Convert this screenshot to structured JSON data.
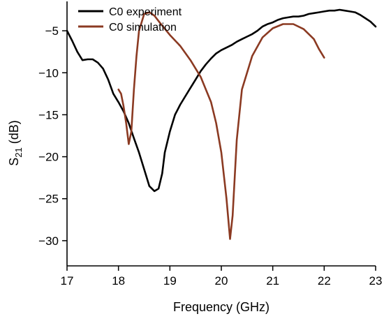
{
  "chart_data": {
    "type": "line",
    "xlabel": "Frequency (GHz)",
    "ylabel_main": "S",
    "ylabel_sub": "21",
    "ylabel_unit": " (dB)",
    "xlim": [
      17,
      23
    ],
    "ylim": [
      -33,
      -1.5
    ],
    "xticks": [
      17,
      18,
      19,
      20,
      21,
      22,
      23
    ],
    "yticks": [
      -5,
      -10,
      -15,
      -20,
      -25,
      -30
    ],
    "grid": false,
    "legend_position": "top-left",
    "series": [
      {
        "name": "C0 experiment",
        "color": "#000000",
        "points": [
          [
            17.0,
            -5.0
          ],
          [
            17.1,
            -6.2
          ],
          [
            17.2,
            -7.5
          ],
          [
            17.3,
            -8.5
          ],
          [
            17.4,
            -8.4
          ],
          [
            17.5,
            -8.4
          ],
          [
            17.6,
            -8.8
          ],
          [
            17.7,
            -9.5
          ],
          [
            17.8,
            -10.8
          ],
          [
            17.9,
            -12.5
          ],
          [
            18.0,
            -13.5
          ],
          [
            18.1,
            -14.6
          ],
          [
            18.2,
            -16.0
          ],
          [
            18.3,
            -17.8
          ],
          [
            18.4,
            -19.5
          ],
          [
            18.5,
            -21.5
          ],
          [
            18.6,
            -23.5
          ],
          [
            18.7,
            -24.1
          ],
          [
            18.78,
            -23.8
          ],
          [
            18.85,
            -22.0
          ],
          [
            18.9,
            -19.5
          ],
          [
            19.0,
            -17.0
          ],
          [
            19.1,
            -15.0
          ],
          [
            19.2,
            -13.8
          ],
          [
            19.3,
            -12.8
          ],
          [
            19.4,
            -11.8
          ],
          [
            19.5,
            -10.8
          ],
          [
            19.6,
            -9.8
          ],
          [
            19.7,
            -9.0
          ],
          [
            19.8,
            -8.3
          ],
          [
            19.9,
            -7.7
          ],
          [
            20.0,
            -7.3
          ],
          [
            20.1,
            -7.0
          ],
          [
            20.2,
            -6.7
          ],
          [
            20.3,
            -6.3
          ],
          [
            20.4,
            -6.0
          ],
          [
            20.5,
            -5.7
          ],
          [
            20.6,
            -5.4
          ],
          [
            20.7,
            -5.0
          ],
          [
            20.8,
            -4.5
          ],
          [
            20.9,
            -4.2
          ],
          [
            21.0,
            -4.0
          ],
          [
            21.1,
            -3.7
          ],
          [
            21.2,
            -3.5
          ],
          [
            21.3,
            -3.4
          ],
          [
            21.4,
            -3.3
          ],
          [
            21.5,
            -3.3
          ],
          [
            21.6,
            -3.2
          ],
          [
            21.7,
            -3.0
          ],
          [
            21.8,
            -2.9
          ],
          [
            21.9,
            -2.8
          ],
          [
            22.0,
            -2.7
          ],
          [
            22.1,
            -2.6
          ],
          [
            22.2,
            -2.6
          ],
          [
            22.3,
            -2.5
          ],
          [
            22.4,
            -2.6
          ],
          [
            22.5,
            -2.7
          ],
          [
            22.6,
            -2.8
          ],
          [
            22.7,
            -3.1
          ],
          [
            22.8,
            -3.5
          ],
          [
            22.9,
            -3.9
          ],
          [
            23.0,
            -4.5
          ]
        ]
      },
      {
        "name": "C0 simulation",
        "color": "#8b3a22",
        "points": [
          [
            18.0,
            -12.0
          ],
          [
            18.05,
            -12.5
          ],
          [
            18.1,
            -14.0
          ],
          [
            18.15,
            -16.0
          ],
          [
            18.2,
            -18.5
          ],
          [
            18.25,
            -17.0
          ],
          [
            18.3,
            -12.0
          ],
          [
            18.35,
            -8.0
          ],
          [
            18.4,
            -5.0
          ],
          [
            18.5,
            -3.0
          ],
          [
            18.6,
            -2.8
          ],
          [
            18.7,
            -3.2
          ],
          [
            18.8,
            -4.0
          ],
          [
            19.0,
            -5.5
          ],
          [
            19.2,
            -6.8
          ],
          [
            19.4,
            -8.5
          ],
          [
            19.6,
            -10.5
          ],
          [
            19.8,
            -13.5
          ],
          [
            19.9,
            -16.0
          ],
          [
            20.0,
            -19.5
          ],
          [
            20.1,
            -25.0
          ],
          [
            20.17,
            -29.8
          ],
          [
            20.22,
            -27.0
          ],
          [
            20.3,
            -18.0
          ],
          [
            20.4,
            -12.0
          ],
          [
            20.6,
            -8.0
          ],
          [
            20.8,
            -5.8
          ],
          [
            21.0,
            -4.7
          ],
          [
            21.2,
            -4.2
          ],
          [
            21.4,
            -4.2
          ],
          [
            21.6,
            -4.8
          ],
          [
            21.8,
            -6.0
          ],
          [
            21.9,
            -7.2
          ],
          [
            22.0,
            -8.2
          ]
        ]
      }
    ]
  }
}
